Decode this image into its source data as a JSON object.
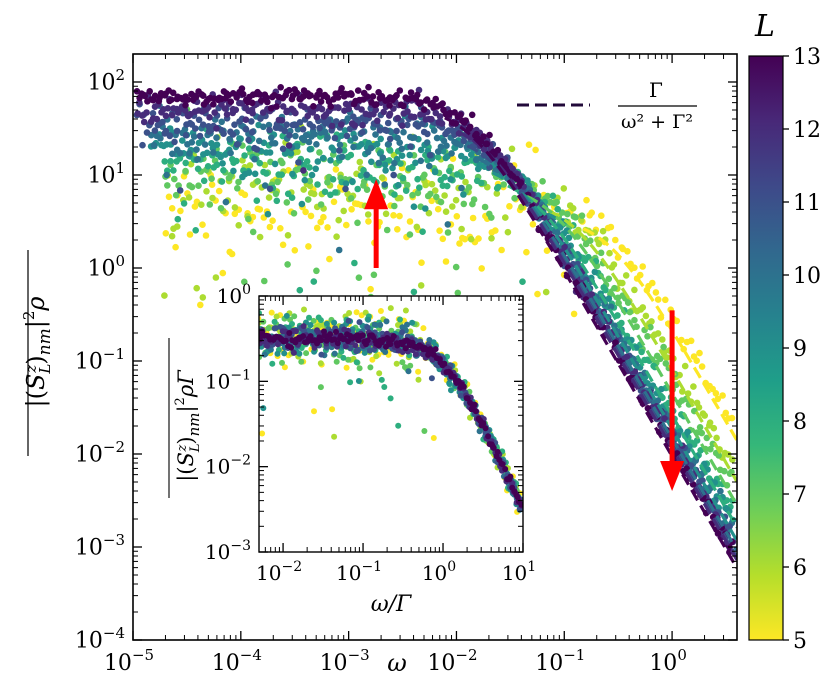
{
  "chart_data": {
    "main": {
      "type": "scatter",
      "xscale": "log",
      "yscale": "log",
      "xlim": [
        1e-05,
        4
      ],
      "ylim": [
        0.0001,
        200
      ],
      "x_ticks": [
        {
          "value": 1e-05,
          "base": "10",
          "exp": "−5"
        },
        {
          "value": 0.0001,
          "base": "10",
          "exp": "−4"
        },
        {
          "value": 0.001,
          "base": "10",
          "exp": "−3"
        },
        {
          "value": 0.01,
          "base": "10",
          "exp": "−2"
        },
        {
          "value": 0.1,
          "base": "10",
          "exp": "−1"
        },
        {
          "value": 1,
          "base": "10",
          "exp": "0"
        }
      ],
      "y_ticks": [
        {
          "value": 0.0001,
          "base": "10",
          "exp": "−4"
        },
        {
          "value": 0.001,
          "base": "10",
          "exp": "−3"
        },
        {
          "value": 0.01,
          "base": "10",
          "exp": "−2"
        },
        {
          "value": 0.1,
          "base": "10",
          "exp": "−1"
        },
        {
          "value": 1,
          "base": "10",
          "exp": "0"
        },
        {
          "value": 10,
          "base": "10",
          "exp": "1"
        },
        {
          "value": 100,
          "base": "10",
          "exp": "2"
        }
      ],
      "xlabel": "ω",
      "ylabel": "|(S_L^z)_nm|² ρ",
      "ylabel_parts": {
        "pre": "|(",
        "S": "S",
        "sub": "L",
        "sup": "z",
        "post": ")",
        "nm": "nm",
        "pipe": "|",
        "two": "2",
        "rho": "ρ"
      },
      "legend": {
        "entry": "Γ / (ω² + Γ²)",
        "numerator": "Γ",
        "denominator": "ω² + Γ²",
        "style": "dashed",
        "placement": "top-right"
      },
      "series": [
        {
          "L": 5,
          "plateau": 4.5,
          "Gamma": 0.25
        },
        {
          "L": 6,
          "plateau": 7.0,
          "Gamma": 0.12
        },
        {
          "L": 7,
          "plateau": 10.0,
          "Gamma": 0.075
        },
        {
          "L": 8,
          "plateau": 13.0,
          "Gamma": 0.05
        },
        {
          "L": 9,
          "plateau": 18.0,
          "Gamma": 0.036
        },
        {
          "L": 10,
          "plateau": 25.0,
          "Gamma": 0.027
        },
        {
          "L": 11,
          "plateau": 35.0,
          "Gamma": 0.021
        },
        {
          "L": 12,
          "plateau": 50.0,
          "Gamma": 0.017
        },
        {
          "L": 13,
          "plateau": 70.0,
          "Gamma": 0.013
        }
      ],
      "annotations": [
        {
          "type": "arrow",
          "direction": "up",
          "color": "#ff0000",
          "x": 0.0018,
          "y_from": 1.0,
          "y_to": 9.0
        },
        {
          "type": "arrow",
          "direction": "down",
          "color": "#ff0000",
          "x": 1.0,
          "y_from": 0.35,
          "y_to": 0.004
        }
      ]
    },
    "inset": {
      "type": "scatter",
      "xscale": "log",
      "yscale": "log",
      "xlim": [
        0.005,
        10
      ],
      "ylim": [
        0.001,
        1
      ],
      "x_ticks": [
        {
          "value": 0.01,
          "base": "10",
          "exp": "−2"
        },
        {
          "value": 0.1,
          "base": "10",
          "exp": "−1"
        },
        {
          "value": 1,
          "base": "10",
          "exp": "0"
        },
        {
          "value": 10,
          "base": "10",
          "exp": "1"
        }
      ],
      "y_ticks": [
        {
          "value": 0.001,
          "base": "10",
          "exp": "−3"
        },
        {
          "value": 0.01,
          "base": "10",
          "exp": "−2"
        },
        {
          "value": 0.1,
          "base": "10",
          "exp": "−1"
        },
        {
          "value": 1,
          "base": "10",
          "exp": "0"
        }
      ],
      "xlabel": "ω/Γ",
      "ylabel": "|(S_L^z)_nm|² ρ Γ",
      "ylabel_parts": {
        "pre": "|(",
        "S": "S",
        "sub": "L",
        "sup": "z",
        "post": ")",
        "nm": "nm",
        "pipe": "|",
        "two": "2",
        "rho": "ρΓ"
      },
      "plateau": 0.32
    },
    "colorbar": {
      "label": "L",
      "range": [
        5,
        13
      ],
      "ticks": [
        "5",
        "6",
        "7",
        "8",
        "9",
        "10",
        "11",
        "12",
        "13"
      ],
      "colormap": "viridis",
      "colors": [
        "#fde725",
        "#b5de2b",
        "#6ece58",
        "#35b779",
        "#1f9e89",
        "#26828e",
        "#31688e",
        "#3e4989",
        "#482878",
        "#440154"
      ]
    }
  }
}
